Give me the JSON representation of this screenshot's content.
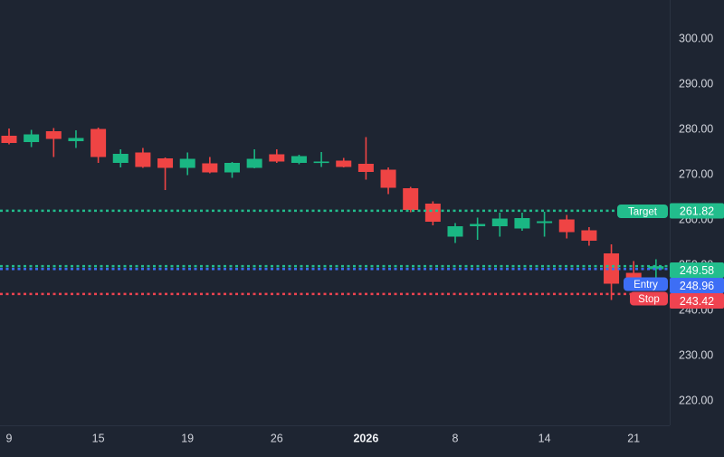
{
  "colors": {
    "background": "#1e2532",
    "axis_line": "#2a3342",
    "axis_text": "#d1d4dc",
    "axis_text_bold": "#f0f2f5",
    "candle_up": "#1ab783",
    "candle_down": "#ef4444",
    "line_green": "#22bd8c",
    "line_blue": "#3d6ef5",
    "line_red": "#ef4350",
    "badge_text": "#ffffff"
  },
  "chart_data": {
    "type": "candlestick",
    "title": "",
    "legend_position": "none",
    "grid": false,
    "y_axis": {
      "side": "right",
      "ticks": [
        {
          "price": 300,
          "label": "300.00"
        },
        {
          "price": 290,
          "label": "290.00"
        },
        {
          "price": 280,
          "label": "280.00"
        },
        {
          "price": 270,
          "label": "270.00"
        },
        {
          "price": 260,
          "label": "260.00"
        },
        {
          "price": 250,
          "label": "250.00"
        },
        {
          "price": 240,
          "label": "240.00"
        },
        {
          "price": 230,
          "label": "230.00"
        },
        {
          "price": 220,
          "label": "220.00"
        }
      ],
      "visible_range": [
        211.6,
        308.4
      ]
    },
    "x_axis": {
      "ticks": [
        {
          "label": "9",
          "x": 10.0,
          "bold": false
        },
        {
          "label": "15",
          "x": 108.6,
          "bold": false
        },
        {
          "label": "19",
          "x": 207.2,
          "bold": false
        },
        {
          "label": "26",
          "x": 305.8,
          "bold": false
        },
        {
          "label": "2026",
          "x": 404.4,
          "bold": true
        },
        {
          "label": "8",
          "x": 503.0,
          "bold": false
        },
        {
          "label": "14",
          "x": 601.6,
          "bold": false
        },
        {
          "label": "21",
          "x": 700.2,
          "bold": false
        }
      ]
    },
    "candles_ohlc": [
      [
        278.4,
        280.0,
        276.5,
        276.8
      ],
      [
        277.0,
        279.7,
        275.9,
        278.7
      ],
      [
        279.4,
        280.1,
        273.7,
        277.7
      ],
      [
        277.2,
        279.6,
        275.7,
        277.9
      ],
      [
        279.9,
        280.2,
        272.4,
        273.7
      ],
      [
        272.4,
        275.4,
        271.4,
        274.4
      ],
      [
        274.7,
        275.7,
        271.3,
        271.5
      ],
      [
        273.4,
        273.6,
        266.4,
        271.3
      ],
      [
        271.3,
        274.7,
        269.7,
        273.3
      ],
      [
        272.3,
        273.7,
        270.1,
        270.3
      ],
      [
        270.3,
        272.6,
        269.1,
        272.4
      ],
      [
        271.3,
        275.4,
        271.2,
        273.3
      ],
      [
        274.3,
        275.4,
        272.4,
        272.7
      ],
      [
        272.4,
        274.2,
        272.1,
        273.9
      ],
      [
        272.5,
        274.8,
        271.5,
        272.7
      ],
      [
        272.9,
        273.5,
        271.4,
        271.5
      ],
      [
        272.2,
        278.1,
        268.7,
        270.4
      ],
      [
        270.9,
        271.4,
        265.5,
        266.9
      ],
      [
        266.8,
        267.1,
        261.5,
        262.0
      ],
      [
        263.4,
        263.9,
        258.6,
        259.4
      ],
      [
        256.1,
        259.1,
        254.7,
        258.4
      ],
      [
        258.4,
        260.3,
        255.4,
        258.9
      ],
      [
        258.4,
        261.4,
        256.1,
        260.1
      ],
      [
        257.9,
        261.4,
        257.4,
        260.2
      ],
      [
        259.1,
        261.6,
        256.1,
        259.5
      ],
      [
        259.9,
        260.9,
        255.7,
        257.1
      ],
      [
        257.5,
        258.2,
        254.1,
        255.2
      ],
      [
        252.4,
        254.4,
        242.1,
        245.7
      ],
      [
        248.1,
        250.7,
        246.5,
        246.9
      ],
      [
        248.9,
        251.1,
        247.1,
        249.58
      ]
    ],
    "levels": [
      {
        "id": "target",
        "label": "Target",
        "value": 261.82,
        "display": "261.82",
        "style": "green"
      },
      {
        "id": "last",
        "label": "",
        "value": 249.58,
        "display": "249.58",
        "style": "green"
      },
      {
        "id": "entry",
        "label": "Entry",
        "value": 248.96,
        "display": "248.96",
        "style": "blue"
      },
      {
        "id": "stop",
        "label": "Stop",
        "value": 243.42,
        "display": "243.42",
        "style": "red"
      }
    ]
  }
}
